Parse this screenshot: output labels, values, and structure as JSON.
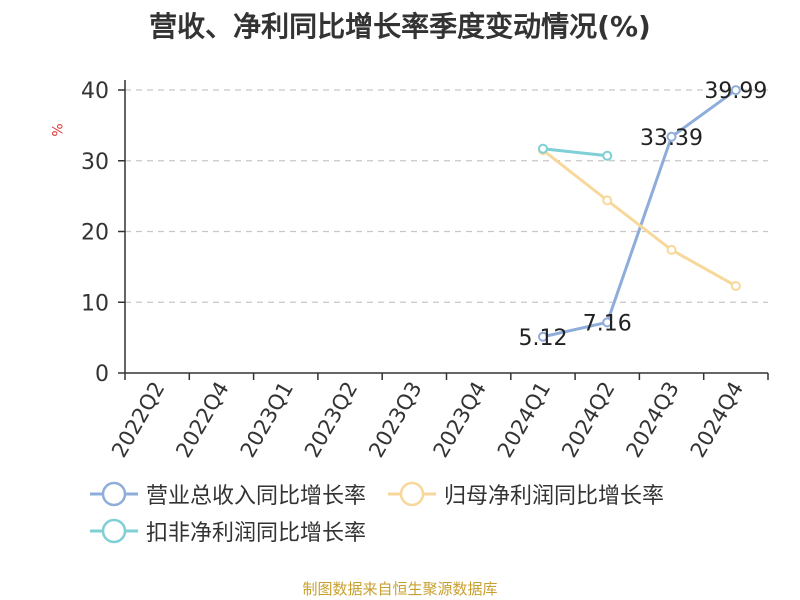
{
  "chart_data": {
    "type": "line",
    "title": "营收、净利同比增长率季度变动情况(%)",
    "ylabel": "%",
    "xlabel": "",
    "categories": [
      "2022Q2",
      "2022Q4",
      "2023Q1",
      "2023Q2",
      "2023Q3",
      "2023Q4",
      "2024Q1",
      "2024Q2",
      "2024Q3",
      "2024Q4"
    ],
    "ylim": [
      0,
      40
    ],
    "yticks": [
      0,
      10,
      20,
      30,
      40
    ],
    "grid": true,
    "legend_position": "bottom",
    "series": [
      {
        "name": "营业总收入同比增长率",
        "color": "#8eaddb",
        "values": [
          null,
          null,
          null,
          null,
          null,
          null,
          5.12,
          7.16,
          33.39,
          39.99
        ],
        "data_labels": [
          null,
          null,
          null,
          null,
          null,
          null,
          "5.12",
          "7.16",
          "33.39",
          "39.99"
        ]
      },
      {
        "name": "归母净利润同比增长率",
        "color": "#f8d89a",
        "values": [
          null,
          null,
          null,
          null,
          null,
          null,
          31.5,
          24.4,
          17.4,
          12.3
        ],
        "data_labels": [
          null,
          null,
          null,
          null,
          null,
          null,
          null,
          null,
          null,
          null
        ]
      },
      {
        "name": "扣非净利润同比增长率",
        "color": "#7ecfd6",
        "values": [
          null,
          null,
          null,
          null,
          null,
          null,
          31.7,
          30.7,
          null,
          null
        ],
        "data_labels": [
          null,
          null,
          null,
          null,
          null,
          null,
          null,
          null,
          null,
          null
        ]
      }
    ]
  },
  "source": "制图数据来自恒生聚源数据库"
}
